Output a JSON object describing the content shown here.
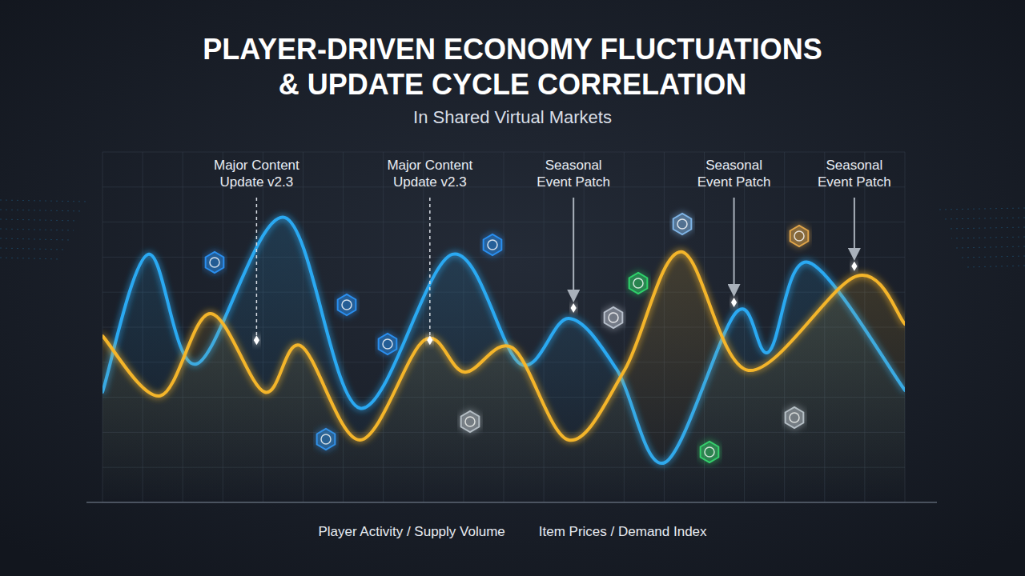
{
  "chart_data": {
    "type": "line",
    "title": "PLAYER-DRIVEN ECONOMY FLUCTUATIONS & UPDATE CYCLE CORRELATION",
    "subtitle": "In Shared Virtual Markets",
    "series": [
      {
        "name": "Player Activity / Supply Volume",
        "color": "#2aa9f2",
        "x": [
          0,
          5.7,
          11.7,
          22.7,
          32.1,
          43.6,
          52.1,
          58.1,
          64.1,
          70.1,
          79.0,
          83.0,
          88.0,
          100
        ],
        "values": [
          31.5,
          70.8,
          39.5,
          81.3,
          26.9,
          70.8,
          39.5,
          52.5,
          37.9,
          11.4,
          54.3,
          42.9,
          68.5,
          32.0
        ]
      },
      {
        "name": "Item Prices / Demand Index",
        "color": "#f4b52a",
        "x": [
          0,
          7.2,
          13.4,
          20.2,
          24.7,
          32.1,
          40.1,
          45.1,
          51.1,
          58.1,
          65.1,
          72.1,
          80.5,
          94.0,
          100
        ],
        "values": [
          47.5,
          30.4,
          53.9,
          31.5,
          44.7,
          17.8,
          46.3,
          37.2,
          44.1,
          17.8,
          37.9,
          71.5,
          37.7,
          64.6,
          50.9
        ]
      }
    ],
    "annotations": [
      {
        "text": "Major Content Update v2.3",
        "x": 19.2,
        "y": 46.3,
        "line_style": "dashed"
      },
      {
        "text": "Major Content Update v2.3",
        "x": 40.8,
        "y": 46.3,
        "line_style": "dashed"
      },
      {
        "text": "Seasonal Event Patch",
        "x": 58.7,
        "y": 55.5,
        "line_style": "solid"
      },
      {
        "text": "Seasonal Event Patch",
        "x": 78.7,
        "y": 57.1,
        "line_style": "solid"
      },
      {
        "text": "Seasonal Event Patch",
        "x": 93.7,
        "y": 67.4,
        "line_style": "solid"
      }
    ],
    "xlim": [
      0,
      100
    ],
    "ylim": [
      0,
      100
    ],
    "xticks": [
      0,
      5,
      10,
      15,
      20,
      25,
      30,
      35,
      40,
      45,
      50,
      55,
      60,
      65,
      70,
      75,
      80,
      85,
      90,
      95,
      100
    ],
    "yticks": [
      0,
      10,
      20,
      30,
      40,
      50,
      60,
      70,
      80,
      90,
      100
    ],
    "grid": true,
    "legend": "bottom",
    "tick_labels": false
  }
}
